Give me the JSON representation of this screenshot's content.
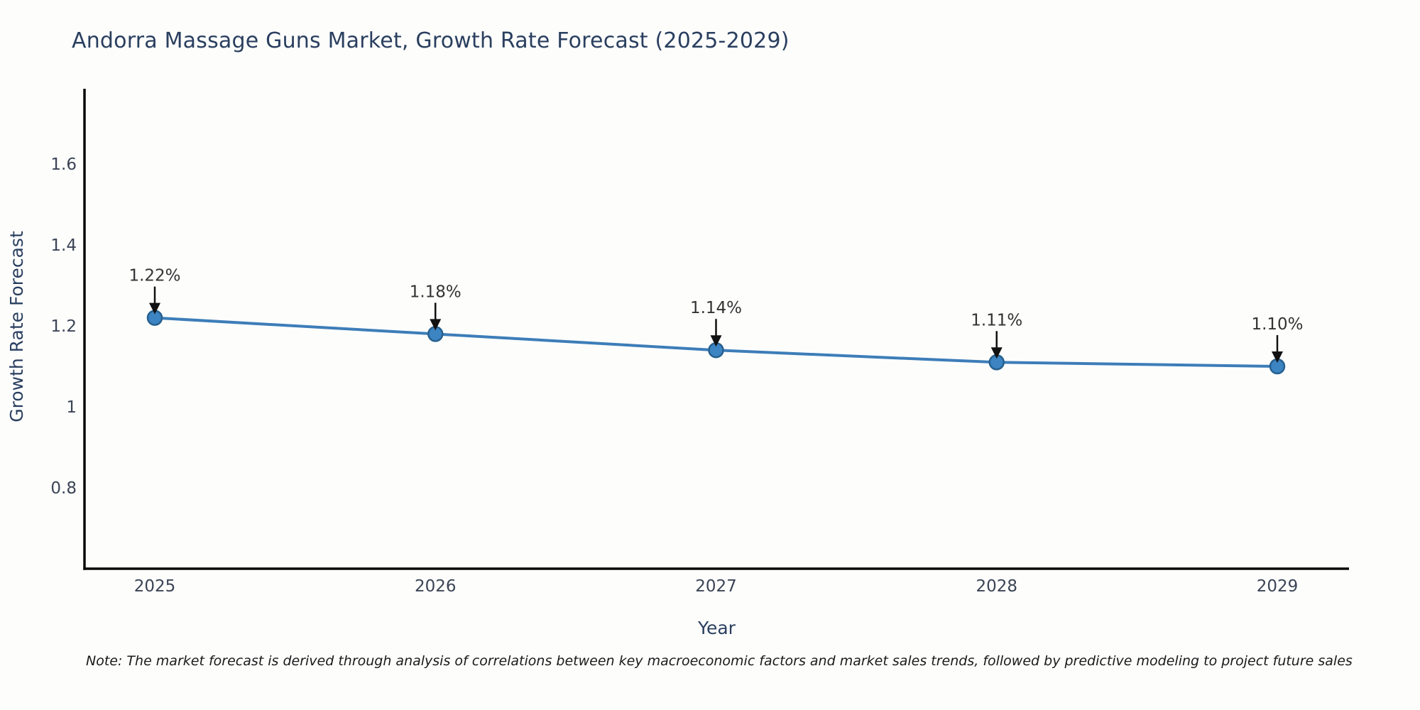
{
  "chart_data": {
    "type": "line",
    "title": "Andorra Massage Guns Market, Growth Rate Forecast (2025-2029)",
    "xlabel": "Year",
    "ylabel": "Growth Rate Forecast",
    "x": [
      2025,
      2026,
      2027,
      2028,
      2029
    ],
    "series": [
      {
        "name": "Growth Rate Forecast",
        "values": [
          1.22,
          1.18,
          1.14,
          1.11,
          1.1
        ],
        "point_labels": [
          "1.22%",
          "1.18%",
          "1.14%",
          "1.11%",
          "1.10%"
        ]
      }
    ],
    "yticks": {
      "values": [
        0.8,
        1.0,
        1.2,
        1.4,
        1.6
      ],
      "labels": [
        "0.8",
        "1",
        "1.2",
        "1.4",
        "1.6"
      ]
    },
    "ylim": [
      0.6,
      1.786
    ],
    "grid": false,
    "legend": "none",
    "annotations_style": "value-label-with-down-arrow",
    "colors": {
      "line": "#3d7db8",
      "marker_fill": "#3c84c2",
      "marker_edge": "#27608f",
      "axis": "#0a0a0a",
      "tick_label": "#3b4455",
      "axis_title": "#2a3f5f",
      "chart_title": "#2a3f5f",
      "annotation_text": "#333333",
      "arrow": "#111111"
    }
  },
  "note": "Note: The market forecast is derived through analysis of correlations between key macroeconomic factors and market sales trends, followed by predictive modeling to project future sales"
}
